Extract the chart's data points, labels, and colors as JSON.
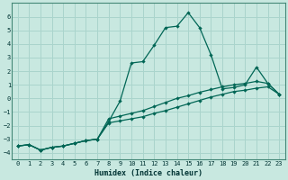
{
  "xlabel": "Humidex (Indice chaleur)",
  "xlim": [
    -0.5,
    23.5
  ],
  "ylim": [
    -4.5,
    7.0
  ],
  "yticks": [
    -4,
    -3,
    -2,
    -1,
    0,
    1,
    2,
    3,
    4,
    5,
    6
  ],
  "xticks": [
    0,
    1,
    2,
    3,
    4,
    5,
    6,
    7,
    8,
    9,
    10,
    11,
    12,
    13,
    14,
    15,
    16,
    17,
    18,
    19,
    20,
    21,
    22,
    23
  ],
  "bg_color": "#c8e8e0",
  "grid_color": "#aad4cc",
  "line_color": "#006655",
  "series_main_x": [
    0,
    1,
    2,
    3,
    4,
    5,
    6,
    7,
    8,
    9,
    10,
    11,
    12,
    13,
    14,
    15,
    16,
    17,
    18,
    19,
    20,
    21,
    22,
    23
  ],
  "series_main_y": [
    -3.5,
    -3.4,
    -3.8,
    -3.6,
    -3.5,
    -3.3,
    -3.1,
    -3.0,
    -1.7,
    -0.2,
    2.6,
    2.7,
    3.9,
    5.2,
    5.3,
    6.3,
    5.2,
    3.2,
    0.7,
    0.8,
    1.0,
    2.3,
    1.1,
    0.3
  ],
  "series_lower_x": [
    0,
    1,
    2,
    3,
    4,
    5,
    6,
    7,
    8,
    9,
    10,
    11,
    12,
    13,
    14,
    15,
    16,
    17,
    18,
    19,
    20,
    21,
    22,
    23
  ],
  "series_lower_y": [
    -3.5,
    -3.4,
    -3.8,
    -3.6,
    -3.5,
    -3.3,
    -3.1,
    -3.0,
    -1.8,
    -1.65,
    -1.5,
    -1.35,
    -1.1,
    -0.9,
    -0.65,
    -0.4,
    -0.15,
    0.1,
    0.3,
    0.5,
    0.6,
    0.75,
    0.85,
    0.3
  ],
  "series_upper_x": [
    0,
    1,
    2,
    3,
    4,
    5,
    6,
    7,
    8,
    9,
    10,
    11,
    12,
    13,
    14,
    15,
    16,
    17,
    18,
    19,
    20,
    21,
    22,
    23
  ],
  "series_upper_y": [
    -3.5,
    -3.4,
    -3.8,
    -3.6,
    -3.5,
    -3.3,
    -3.1,
    -3.0,
    -1.5,
    -1.3,
    -1.1,
    -0.9,
    -0.6,
    -0.3,
    0.0,
    0.2,
    0.45,
    0.65,
    0.85,
    1.0,
    1.1,
    1.25,
    1.1,
    0.3
  ]
}
